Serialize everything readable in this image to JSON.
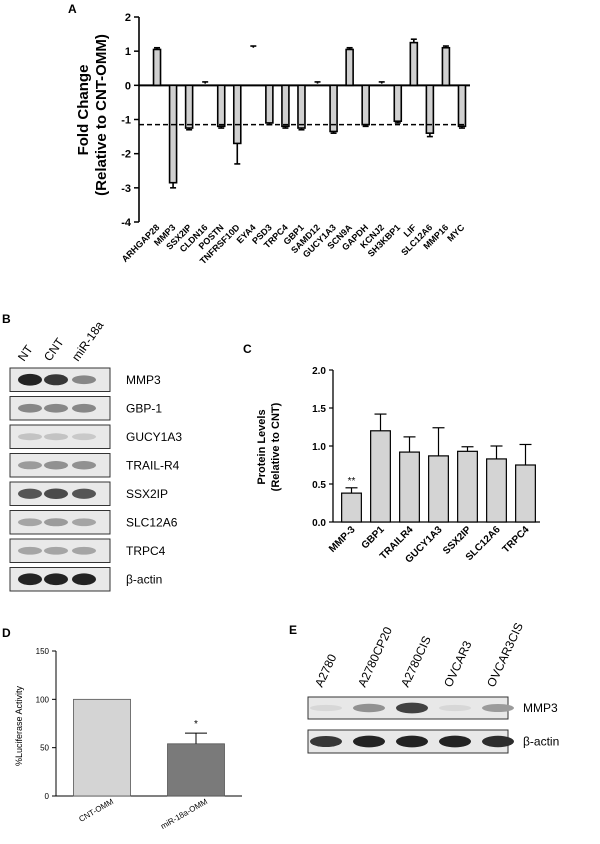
{
  "panel_labels": {
    "a": "A",
    "b": "B",
    "c": "C",
    "d": "D",
    "e": "E"
  },
  "chart_data": [
    {
      "panel": "A",
      "type": "bar",
      "ylabel_line1": "Fold Change",
      "ylabel_line2": "(Relative to CNT-OMM)",
      "ylim": [
        -4,
        2
      ],
      "yticks": [
        2,
        1,
        0,
        -1,
        -2,
        -3,
        -4
      ],
      "reference_line": -1.15,
      "categories": [
        "ARHGAP28",
        "MMP3",
        "SSX2IP",
        "CLDN16",
        "POSTN",
        "TNFRSF10D",
        "EYA4",
        "PSD3",
        "TRPC4",
        "GBP1",
        "SAMD12",
        "GUCY1A3",
        "SCN9A",
        "GAPDH",
        "KCNJ2",
        "SH3KBP1",
        "LIF",
        "SLC12A6",
        "MMP16",
        "MYC"
      ],
      "values": [
        1.05,
        -2.85,
        -1.25,
        0.05,
        -1.2,
        -1.7,
        1.1,
        -1.1,
        -1.2,
        -1.25,
        0.05,
        -1.35,
        1.05,
        -1.15,
        0.05,
        -1.05,
        1.25,
        -1.4,
        1.1,
        -1.2
      ],
      "errors": [
        0.05,
        0.15,
        0.05,
        0.05,
        0.05,
        0.6,
        0.05,
        0.05,
        0.05,
        0.05,
        0.05,
        0.05,
        0.05,
        0.05,
        0.05,
        0.05,
        0.1,
        0.1,
        0.05,
        0.05
      ],
      "error_dir": [
        1,
        -1,
        -1,
        1,
        -1,
        -1,
        1,
        -1,
        -1,
        -1,
        1,
        -1,
        1,
        -1,
        1,
        -1,
        1,
        -1,
        1,
        -1
      ],
      "bar_fill": [
        1,
        1,
        1,
        0,
        1,
        1,
        0,
        1,
        1,
        1,
        0,
        1,
        1,
        1,
        0,
        1,
        1,
        1,
        1,
        1
      ]
    },
    {
      "panel": "C",
      "type": "bar",
      "ylabel_line1": "Protein Levels",
      "ylabel_line2": "(Relative to CNT)",
      "ylim": [
        0,
        2.0
      ],
      "yticks": [
        "2.0",
        "1.5",
        "1.0",
        "0.5",
        "0.0"
      ],
      "categories": [
        "MMP-3",
        "GBP1",
        "TRAILR4",
        "GUCY1A3",
        "SSX2IP",
        "SLC12A6",
        "TRPC4"
      ],
      "values": [
        0.38,
        1.2,
        0.92,
        0.87,
        0.93,
        0.83,
        0.75
      ],
      "errors": [
        0.07,
        0.22,
        0.2,
        0.37,
        0.06,
        0.17,
        0.27
      ],
      "annotations": [
        {
          "category": "MMP-3",
          "text": "**"
        }
      ]
    },
    {
      "panel": "D",
      "type": "bar",
      "ylabel": "%Luciferase Activity",
      "ylim": [
        0,
        150
      ],
      "yticks": [
        "150",
        "100",
        "50",
        "0"
      ],
      "categories": [
        "CNT-OMM",
        "miR-18a-OMM"
      ],
      "values": [
        100,
        54
      ],
      "errors": [
        0,
        11
      ],
      "colors": [
        "#d4d4d4",
        "#7a7a7a"
      ],
      "annotations": [
        {
          "category": "miR-18a-OMM",
          "text": "*"
        }
      ]
    }
  ],
  "blot_b": {
    "lanes": [
      "NT",
      "CNT",
      "miR-18a"
    ],
    "rows": [
      "MMP3",
      "GBP-1",
      "GUCY1A3",
      "TRAIL-R4",
      "SSX2IP",
      "SLC12A6",
      "TRPC4",
      "β-actin"
    ],
    "intensity": [
      [
        0.95,
        0.85,
        0.45
      ],
      [
        0.45,
        0.45,
        0.45
      ],
      [
        0.15,
        0.15,
        0.12
      ],
      [
        0.35,
        0.4,
        0.4
      ],
      [
        0.7,
        0.75,
        0.7
      ],
      [
        0.3,
        0.35,
        0.3
      ],
      [
        0.3,
        0.3,
        0.3
      ],
      [
        0.95,
        0.95,
        0.95
      ]
    ]
  },
  "blot_e": {
    "lanes": [
      "A2780",
      "A2780CP20",
      "A2780CIS",
      "OVCAR3",
      "OVCAR3CIS"
    ],
    "rows": [
      "MMP3",
      "β-actin"
    ],
    "intensity": [
      [
        0.05,
        0.4,
        0.8,
        0.05,
        0.35
      ],
      [
        0.85,
        0.95,
        0.95,
        0.95,
        0.9
      ]
    ]
  }
}
